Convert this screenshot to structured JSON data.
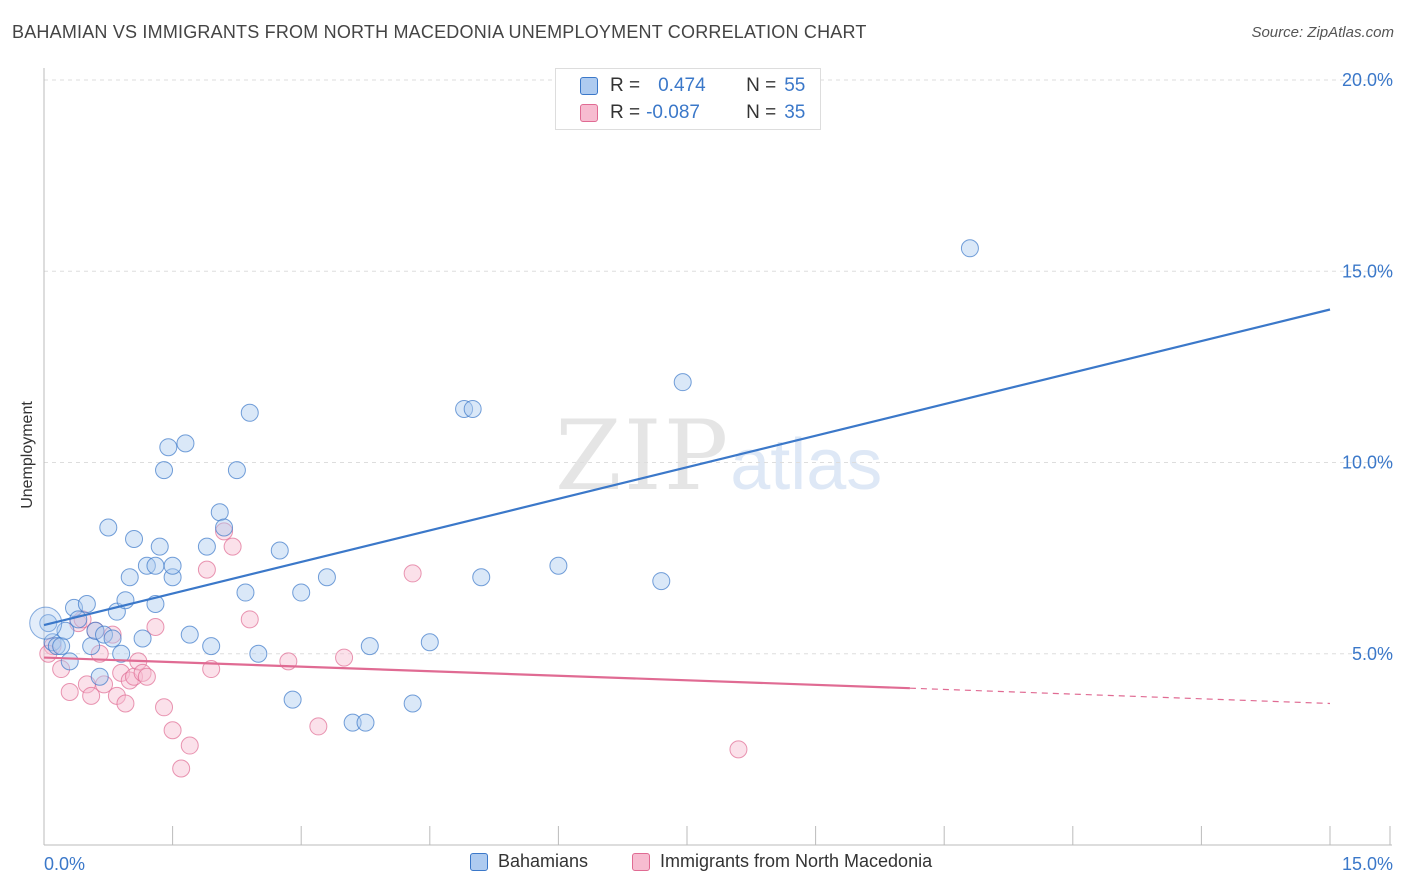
{
  "title": "BAHAMIAN VS IMMIGRANTS FROM NORTH MACEDONIA UNEMPLOYMENT CORRELATION CHART",
  "source": "Source: ZipAtlas.com",
  "watermark": {
    "zip": "ZIP",
    "atlas": "atlas"
  },
  "stats": {
    "blue": {
      "r_label": "R =",
      "r_value": "0.474",
      "n_label": "N =",
      "n_value": "55"
    },
    "pink": {
      "r_label": "R =",
      "r_value": "-0.087",
      "n_label": "N =",
      "n_value": "35"
    }
  },
  "colors": {
    "blue": "#3b78c9",
    "blue_fill": "#aecbf0",
    "pink": "#e06b93",
    "pink_fill": "#f7bcd0"
  },
  "chart_data": {
    "type": "scatter",
    "ylabel": "Unemployment",
    "xlim": [
      0,
      15
    ],
    "ylim": [
      0,
      20
    ],
    "x_tick_labels": [
      {
        "value": 0,
        "label": "0.0%"
      },
      {
        "value": 15,
        "label": "15.0%"
      }
    ],
    "y_tick_labels": [
      {
        "value": 5,
        "label": "5.0%"
      },
      {
        "value": 10,
        "label": "10.0%"
      },
      {
        "value": 15,
        "label": "15.0%"
      },
      {
        "value": 20,
        "label": "20.0%"
      }
    ],
    "legend": [
      "Bahamians",
      "Immigrants from North Macedonia"
    ],
    "series": [
      {
        "name": "Bahamians",
        "color": "#3b78c9",
        "trend": {
          "x0": 0,
          "y0": 5.75,
          "x1": 15,
          "y1": 14.0
        },
        "points": [
          [
            0.05,
            5.8
          ],
          [
            0.1,
            5.3
          ],
          [
            0.15,
            5.2
          ],
          [
            0.2,
            5.2
          ],
          [
            0.25,
            5.6
          ],
          [
            0.3,
            4.8
          ],
          [
            0.35,
            6.2
          ],
          [
            0.4,
            5.9
          ],
          [
            0.5,
            6.3
          ],
          [
            0.55,
            5.2
          ],
          [
            0.6,
            5.6
          ],
          [
            0.65,
            4.4
          ],
          [
            0.7,
            5.5
          ],
          [
            0.75,
            8.3
          ],
          [
            0.8,
            5.4
          ],
          [
            0.85,
            6.1
          ],
          [
            0.9,
            5.0
          ],
          [
            0.95,
            6.4
          ],
          [
            1.0,
            7.0
          ],
          [
            1.05,
            8.0
          ],
          [
            1.15,
            5.4
          ],
          [
            1.2,
            7.3
          ],
          [
            1.3,
            7.3
          ],
          [
            1.3,
            6.3
          ],
          [
            1.35,
            7.8
          ],
          [
            1.4,
            9.8
          ],
          [
            1.45,
            10.4
          ],
          [
            1.5,
            7.0
          ],
          [
            1.5,
            7.3
          ],
          [
            1.65,
            10.5
          ],
          [
            1.7,
            5.5
          ],
          [
            1.9,
            7.8
          ],
          [
            1.95,
            5.2
          ],
          [
            2.05,
            8.7
          ],
          [
            2.1,
            8.3
          ],
          [
            2.25,
            9.8
          ],
          [
            2.35,
            6.6
          ],
          [
            2.4,
            11.3
          ],
          [
            2.5,
            5.0
          ],
          [
            2.75,
            7.7
          ],
          [
            2.9,
            3.8
          ],
          [
            3.0,
            6.6
          ],
          [
            3.3,
            7.0
          ],
          [
            3.6,
            3.2
          ],
          [
            3.75,
            3.2
          ],
          [
            3.8,
            5.2
          ],
          [
            4.3,
            3.7
          ],
          [
            4.5,
            5.3
          ],
          [
            4.9,
            11.4
          ],
          [
            5.0,
            11.4
          ],
          [
            5.1,
            7.0
          ],
          [
            6.0,
            7.3
          ],
          [
            7.2,
            6.9
          ],
          [
            7.45,
            12.1
          ],
          [
            10.8,
            15.6
          ]
        ]
      },
      {
        "name": "Immigrants from North Macedonia",
        "color": "#e06b93",
        "trend": {
          "x0": 0,
          "y0": 4.9,
          "x1": 10.1,
          "y1": 4.1
        },
        "trend_dashed": {
          "x0": 10.1,
          "y0": 4.1,
          "x1": 15,
          "y1": 3.7
        },
        "points": [
          [
            0.1,
            5.2
          ],
          [
            0.2,
            4.6
          ],
          [
            0.3,
            4.0
          ],
          [
            0.4,
            5.8
          ],
          [
            0.45,
            5.9
          ],
          [
            0.5,
            4.2
          ],
          [
            0.55,
            3.9
          ],
          [
            0.6,
            5.6
          ],
          [
            0.65,
            5.0
          ],
          [
            0.7,
            4.2
          ],
          [
            0.8,
            5.5
          ],
          [
            0.85,
            3.9
          ],
          [
            0.9,
            4.5
          ],
          [
            0.95,
            3.7
          ],
          [
            1.0,
            4.3
          ],
          [
            1.05,
            4.4
          ],
          [
            1.1,
            4.8
          ],
          [
            1.15,
            4.5
          ],
          [
            1.2,
            4.4
          ],
          [
            1.3,
            5.7
          ],
          [
            1.4,
            3.6
          ],
          [
            1.5,
            3.0
          ],
          [
            1.6,
            2.0
          ],
          [
            1.7,
            2.6
          ],
          [
            1.9,
            7.2
          ],
          [
            1.95,
            4.6
          ],
          [
            2.1,
            8.2
          ],
          [
            2.2,
            7.8
          ],
          [
            2.4,
            5.9
          ],
          [
            2.85,
            4.8
          ],
          [
            3.2,
            3.1
          ],
          [
            3.5,
            4.9
          ],
          [
            4.3,
            7.1
          ],
          [
            8.1,
            2.5
          ],
          [
            0.05,
            5.0
          ]
        ]
      }
    ]
  }
}
